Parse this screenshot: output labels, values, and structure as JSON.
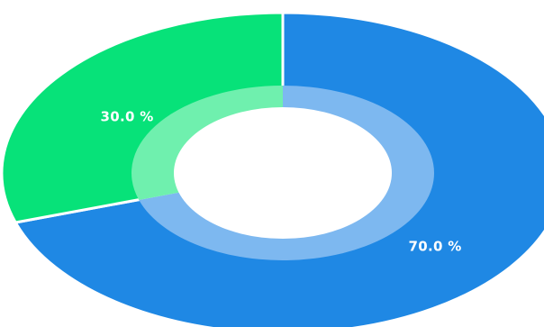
{
  "chart_data": {
    "type": "pie",
    "variant": "donut",
    "categories": [
      "",
      ""
    ],
    "values": [
      70.0,
      30.0
    ],
    "labels": [
      "70.0 %",
      "30.0 %"
    ],
    "colors": [
      "#1f88e4",
      "#07e279"
    ],
    "inner_ring_colors": [
      "#7db8f0",
      "#6ff0ae"
    ],
    "title": "",
    "legend": "none"
  }
}
